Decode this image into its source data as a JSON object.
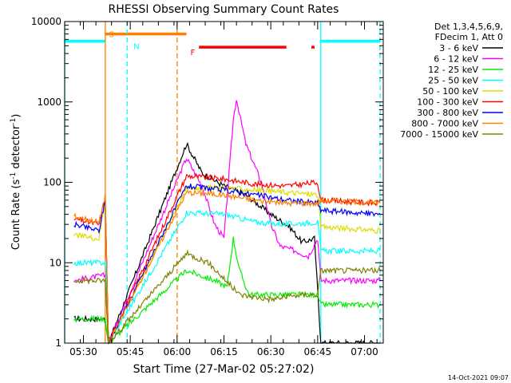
{
  "chart_data": {
    "type": "line",
    "title": "RHESSI Observing Summary Count Rates",
    "xlabel": "Start Time (27-Mar-02 05:27:02)",
    "ylabel_main": "Count Rate (s",
    "ylabel_sup1": "-1",
    "ylabel_mid": " detector",
    "ylabel_sup2": "-1",
    "ylabel_end": ")",
    "yscale": "log",
    "ylim": [
      1,
      10000
    ],
    "xlim": [
      "05:24",
      "07:06"
    ],
    "y_ticks": [
      "1",
      "10",
      "100",
      "1000",
      "10000"
    ],
    "x_ticks": [
      "05:30",
      "05:45",
      "06:00",
      "06:15",
      "06:30",
      "06:45",
      "07:00"
    ],
    "legend_header": [
      "Det 1,3,4,5,6,9,",
      "FDecim 1, Att 0"
    ],
    "legend_placement": "top-right outside",
    "footer": "14-Oct-2021 09:07",
    "series": [
      {
        "name": "3 - 6 keV",
        "color": "#000000",
        "points": [
          [
            "05:27",
            2
          ],
          [
            "05:37",
            2
          ],
          [
            "05:38",
            1
          ],
          [
            "06:03",
            300
          ],
          [
            "06:08",
            130
          ],
          [
            "06:15",
            90
          ],
          [
            "06:22",
            70
          ],
          [
            "06:30",
            40
          ],
          [
            "06:36",
            28
          ],
          [
            "06:40",
            18
          ],
          [
            "06:44",
            20
          ],
          [
            "06:46",
            1
          ],
          [
            "07:05",
            1
          ]
        ]
      },
      {
        "name": "6 - 12 keV",
        "color": "#ff00ff",
        "points": [
          [
            "05:27",
            6
          ],
          [
            "05:37",
            7
          ],
          [
            "05:38",
            1
          ],
          [
            "06:03",
            200
          ],
          [
            "06:08",
            90
          ],
          [
            "06:12",
            30
          ],
          [
            "06:15",
            20
          ],
          [
            "06:18",
            600
          ],
          [
            "06:19",
            1100
          ],
          [
            "06:20",
            700
          ],
          [
            "06:22",
            300
          ],
          [
            "06:27",
            100
          ],
          [
            "06:30",
            30
          ],
          [
            "06:33",
            16
          ],
          [
            "06:38",
            14
          ],
          [
            "06:42",
            12
          ],
          [
            "06:45",
            20
          ],
          [
            "06:46",
            6
          ],
          [
            "07:05",
            6
          ]
        ]
      },
      {
        "name": "12 - 25 keV",
        "color": "#00ee00",
        "points": [
          [
            "05:27",
            2
          ],
          [
            "05:37",
            2
          ],
          [
            "05:38",
            1
          ],
          [
            "06:03",
            8
          ],
          [
            "06:12",
            6
          ],
          [
            "06:16",
            5
          ],
          [
            "06:18",
            20
          ],
          [
            "06:20",
            8
          ],
          [
            "06:23",
            4
          ],
          [
            "06:35",
            4
          ],
          [
            "06:45",
            4
          ],
          [
            "06:46",
            3
          ],
          [
            "07:05",
            3
          ]
        ]
      },
      {
        "name": "25 - 50 keV",
        "color": "#00ffff",
        "points": [
          [
            "05:27",
            10
          ],
          [
            "05:37",
            10
          ],
          [
            "05:38",
            1
          ],
          [
            "06:03",
            42
          ],
          [
            "06:15",
            40
          ],
          [
            "06:25",
            32
          ],
          [
            "06:35",
            30
          ],
          [
            "06:45",
            32
          ],
          [
            "06:46",
            14
          ],
          [
            "07:05",
            14
          ]
        ]
      },
      {
        "name": "50 - 100 keV",
        "color": "#dddd00",
        "points": [
          [
            "05:27",
            22
          ],
          [
            "05:35",
            20
          ],
          [
            "05:37",
            60
          ],
          [
            "05:38",
            1
          ],
          [
            "06:03",
            85
          ],
          [
            "06:15",
            85
          ],
          [
            "06:25",
            80
          ],
          [
            "06:35",
            75
          ],
          [
            "06:45",
            70
          ],
          [
            "06:46",
            28
          ],
          [
            "07:05",
            25
          ]
        ]
      },
      {
        "name": "100 - 300 keV",
        "color": "#ff0000",
        "points": [
          [
            "05:27",
            35
          ],
          [
            "05:35",
            30
          ],
          [
            "05:37",
            65
          ],
          [
            "05:38",
            1
          ],
          [
            "06:03",
            120
          ],
          [
            "06:15",
            110
          ],
          [
            "06:25",
            95
          ],
          [
            "06:35",
            90
          ],
          [
            "06:45",
            100
          ],
          [
            "06:46",
            60
          ],
          [
            "07:05",
            55
          ]
        ]
      },
      {
        "name": "300 - 800 keV",
        "color": "#0000ff",
        "points": [
          [
            "05:27",
            30
          ],
          [
            "05:35",
            25
          ],
          [
            "05:37",
            60
          ],
          [
            "05:38",
            1
          ],
          [
            "06:03",
            90
          ],
          [
            "06:15",
            80
          ],
          [
            "06:25",
            70
          ],
          [
            "06:35",
            60
          ],
          [
            "06:45",
            55
          ],
          [
            "06:46",
            45
          ],
          [
            "07:05",
            40
          ]
        ]
      },
      {
        "name": "800 - 7000 keV",
        "color": "#ff8000",
        "points": [
          [
            "05:27",
            38
          ],
          [
            "05:35",
            32
          ],
          [
            "05:37",
            70
          ],
          [
            "05:38",
            1
          ],
          [
            "06:03",
            75
          ],
          [
            "06:15",
            70
          ],
          [
            "06:25",
            60
          ],
          [
            "06:35",
            55
          ],
          [
            "06:45",
            55
          ],
          [
            "06:46",
            60
          ],
          [
            "07:05",
            55
          ]
        ]
      },
      {
        "name": "7000 - 15000 keV",
        "color": "#808000",
        "points": [
          [
            "05:27",
            6
          ],
          [
            "05:37",
            6
          ],
          [
            "05:38",
            1
          ],
          [
            "06:03",
            13
          ],
          [
            "06:10",
            10
          ],
          [
            "06:20",
            4
          ],
          [
            "06:30",
            3.5
          ],
          [
            "06:40",
            4
          ],
          [
            "06:45",
            4
          ],
          [
            "06:46",
            8
          ],
          [
            "07:05",
            8
          ]
        ]
      }
    ],
    "flags": [
      {
        "label": "S",
        "color": "#ff8000",
        "y": 7000,
        "segments": [
          [
            "05:37",
            "06:03"
          ]
        ]
      },
      {
        "label": "N",
        "color": "#00ffff",
        "y": 5700,
        "segments": [
          [
            "05:24",
            "05:37"
          ],
          [
            "06:46",
            "07:05"
          ]
        ]
      },
      {
        "label": "F",
        "color": "#ff0000",
        "y": 4800,
        "segments": [
          [
            "06:07",
            "06:35"
          ],
          [
            "06:43",
            "06:44"
          ]
        ]
      }
    ],
    "vlines": [
      {
        "time": "05:24",
        "color": "#00ffff",
        "style": "solid"
      },
      {
        "time": "05:37",
        "color": "#ff8000",
        "style": "solid"
      },
      {
        "time": "05:44",
        "color": "#00ffff",
        "style": "dashed"
      },
      {
        "time": "06:00",
        "color": "#ff8000",
        "style": "dashed"
      },
      {
        "time": "06:46",
        "color": "#00ffff",
        "style": "solid"
      },
      {
        "time": "07:05",
        "color": "#00ffff",
        "style": "dashed"
      }
    ]
  }
}
